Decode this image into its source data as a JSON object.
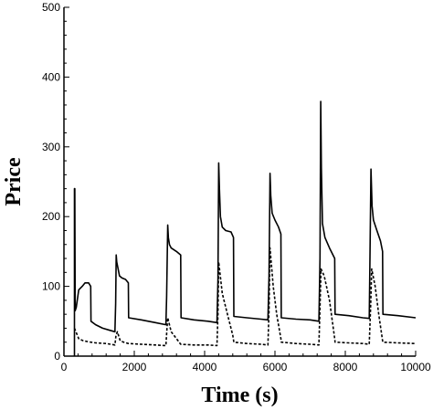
{
  "chart_data": {
    "type": "line",
    "title": "",
    "xlabel": "Time (s)",
    "ylabel": "Price",
    "xlim": [
      0,
      10000
    ],
    "ylim": [
      0,
      500
    ],
    "xticks": [
      0,
      2000,
      4000,
      6000,
      8000,
      10000
    ],
    "yticks": [
      0,
      100,
      200,
      300,
      400,
      500
    ],
    "xtick_labels": [
      "0",
      "2000",
      "4000",
      "6000",
      "8000",
      "10000"
    ],
    "ytick_labels": [
      "0",
      "100",
      "200",
      "300",
      "400",
      "500"
    ],
    "grid": false,
    "legend": "none",
    "series": [
      {
        "style": "solid",
        "color": "#000000",
        "points": [
          [
            300,
            0
          ],
          [
            300,
            240
          ],
          [
            310,
            240
          ],
          [
            320,
            65
          ],
          [
            350,
            70
          ],
          [
            420,
            95
          ],
          [
            520,
            100
          ],
          [
            600,
            105
          ],
          [
            700,
            105
          ],
          [
            760,
            100
          ],
          [
            770,
            50
          ],
          [
            900,
            45
          ],
          [
            1100,
            40
          ],
          [
            1300,
            37
          ],
          [
            1450,
            35
          ],
          [
            1470,
            75
          ],
          [
            1485,
            145
          ],
          [
            1500,
            135
          ],
          [
            1540,
            125
          ],
          [
            1580,
            115
          ],
          [
            1650,
            112
          ],
          [
            1750,
            110
          ],
          [
            1830,
            105
          ],
          [
            1840,
            55
          ],
          [
            2200,
            52
          ],
          [
            2600,
            48
          ],
          [
            2900,
            45
          ],
          [
            2920,
            85
          ],
          [
            2950,
            188
          ],
          [
            2970,
            170
          ],
          [
            3000,
            160
          ],
          [
            3050,
            155
          ],
          [
            3200,
            150
          ],
          [
            3320,
            145
          ],
          [
            3330,
            55
          ],
          [
            3700,
            52
          ],
          [
            4100,
            50
          ],
          [
            4350,
            48
          ],
          [
            4380,
            110
          ],
          [
            4400,
            277
          ],
          [
            4420,
            240
          ],
          [
            4450,
            200
          ],
          [
            4500,
            185
          ],
          [
            4600,
            180
          ],
          [
            4750,
            178
          ],
          [
            4820,
            170
          ],
          [
            4830,
            57
          ],
          [
            5200,
            55
          ],
          [
            5600,
            53
          ],
          [
            5800,
            52
          ],
          [
            5830,
            115
          ],
          [
            5860,
            262
          ],
          [
            5880,
            230
          ],
          [
            5920,
            205
          ],
          [
            6000,
            195
          ],
          [
            6100,
            185
          ],
          [
            6170,
            175
          ],
          [
            6180,
            55
          ],
          [
            6600,
            53
          ],
          [
            7000,
            52
          ],
          [
            7250,
            50
          ],
          [
            7280,
            140
          ],
          [
            7300,
            365
          ],
          [
            7320,
            270
          ],
          [
            7350,
            190
          ],
          [
            7420,
            170
          ],
          [
            7550,
            155
          ],
          [
            7700,
            140
          ],
          [
            7710,
            60
          ],
          [
            8100,
            58
          ],
          [
            8500,
            55
          ],
          [
            8680,
            54
          ],
          [
            8700,
            130
          ],
          [
            8730,
            268
          ],
          [
            8760,
            215
          ],
          [
            8800,
            195
          ],
          [
            8900,
            180
          ],
          [
            9000,
            165
          ],
          [
            9060,
            150
          ],
          [
            9070,
            60
          ],
          [
            9500,
            58
          ],
          [
            10000,
            55
          ]
        ]
      },
      {
        "style": "dashed",
        "color": "#000000",
        "points": [
          [
            300,
            40
          ],
          [
            340,
            35
          ],
          [
            420,
            25
          ],
          [
            550,
            22
          ],
          [
            760,
            20
          ],
          [
            900,
            19
          ],
          [
            1200,
            18
          ],
          [
            1450,
            16
          ],
          [
            1480,
            30
          ],
          [
            1520,
            35
          ],
          [
            1600,
            22
          ],
          [
            1700,
            20
          ],
          [
            1830,
            18
          ],
          [
            2200,
            17
          ],
          [
            2600,
            16
          ],
          [
            2900,
            15
          ],
          [
            2930,
            40
          ],
          [
            2950,
            55
          ],
          [
            3050,
            35
          ],
          [
            3200,
            25
          ],
          [
            3320,
            17
          ],
          [
            3700,
            16
          ],
          [
            4100,
            16
          ],
          [
            4350,
            15
          ],
          [
            4380,
            60
          ],
          [
            4400,
            135
          ],
          [
            4500,
            90
          ],
          [
            4650,
            60
          ],
          [
            4800,
            30
          ],
          [
            4830,
            20
          ],
          [
            5200,
            18
          ],
          [
            5600,
            17
          ],
          [
            5800,
            16
          ],
          [
            5830,
            65
          ],
          [
            5860,
            155
          ],
          [
            5950,
            100
          ],
          [
            6050,
            60
          ],
          [
            6170,
            25
          ],
          [
            6180,
            20
          ],
          [
            6600,
            18
          ],
          [
            7000,
            17
          ],
          [
            7250,
            16
          ],
          [
            7280,
            70
          ],
          [
            7310,
            125
          ],
          [
            7400,
            115
          ],
          [
            7550,
            80
          ],
          [
            7700,
            25
          ],
          [
            7710,
            20
          ],
          [
            8100,
            19
          ],
          [
            8500,
            18
          ],
          [
            8680,
            17
          ],
          [
            8720,
            70
          ],
          [
            8750,
            125
          ],
          [
            8850,
            100
          ],
          [
            8950,
            60
          ],
          [
            9060,
            22
          ],
          [
            9070,
            20
          ],
          [
            9500,
            19
          ],
          [
            10000,
            18
          ]
        ]
      }
    ]
  }
}
